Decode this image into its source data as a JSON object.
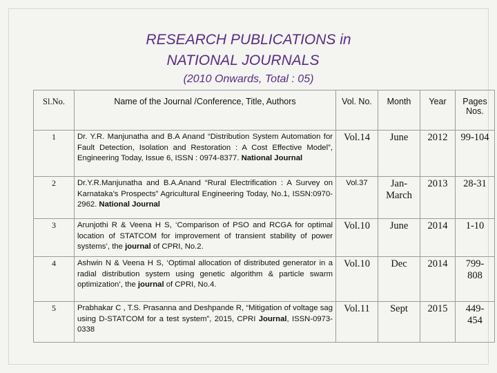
{
  "heading": {
    "line1": "RESEARCH PUBLICATIONS in",
    "line2": "NATIONAL JOURNALS",
    "line3": "(2010  Onwards, Total : 05)"
  },
  "columns": [
    "Sl.No.",
    "Name of the Journal /Conference, Title, Authors",
    "Vol. No.",
    "Month",
    "Year",
    "Pages Nos."
  ],
  "rows": [
    {
      "sl": "1",
      "desc": "Dr. Y.R. Manjunatha and B.A Anand “Distribution System Automation for Fault Detection, Isolation and Restoration : A Cost Effective Model”, Engineering Today, Issue 6, ISSN : 0974-8377.",
      "tail": " National Journal",
      "vol": "Vol.14",
      "month": "June",
      "year": "2012",
      "pages": "99-104"
    },
    {
      "sl": "2",
      "desc": "Dr.Y.R.Manjunatha and B.A.Anand “Rural Electrification : A Survey on Karnataka’s Prospects” Agricultural Engineering Today, No.1, ISSN:0970-2962.",
      "tail": " National Journal",
      "vol": "Vol.37",
      "month": "Jan-March",
      "year": "2013",
      "pages": "28-31"
    },
    {
      "sl": "3",
      "desc": "Arunjothi R & Veena H S, ‘Comparison of PSO and RCGA for optimal location of STATCOM for improvement of transient stability of power systems’, the ",
      "tail": "journal",
      "desc_end": " of CPRI, No.2.",
      "vol": "Vol.10",
      "month": "June",
      "year": "2014",
      "pages": "1-10"
    },
    {
      "sl": "4",
      "desc": "Ashwin N & Veena H S, ‘Optimal allocation of distributed generator in a radial distribution system using genetic algorithm & particle swarm optimization’, the ",
      "tail": "journal",
      "desc_end": " of CPRI, No.4.",
      "vol": "Vol.10",
      "month": "Dec",
      "year": "2014",
      "pages": "799-808"
    },
    {
      "sl": "5",
      "desc": "Prabhakar C , T.S. Prasanna and Deshpande R, “Mitigation of voltage sag using D-STATCOM for a test system”, 2015, CPRI ",
      "tail": "Journal",
      "desc_end": ", ISSN-0973-0338",
      "vol": "Vol.11",
      "month": "Sept",
      "year": "2015",
      "pages": "449-454"
    }
  ]
}
